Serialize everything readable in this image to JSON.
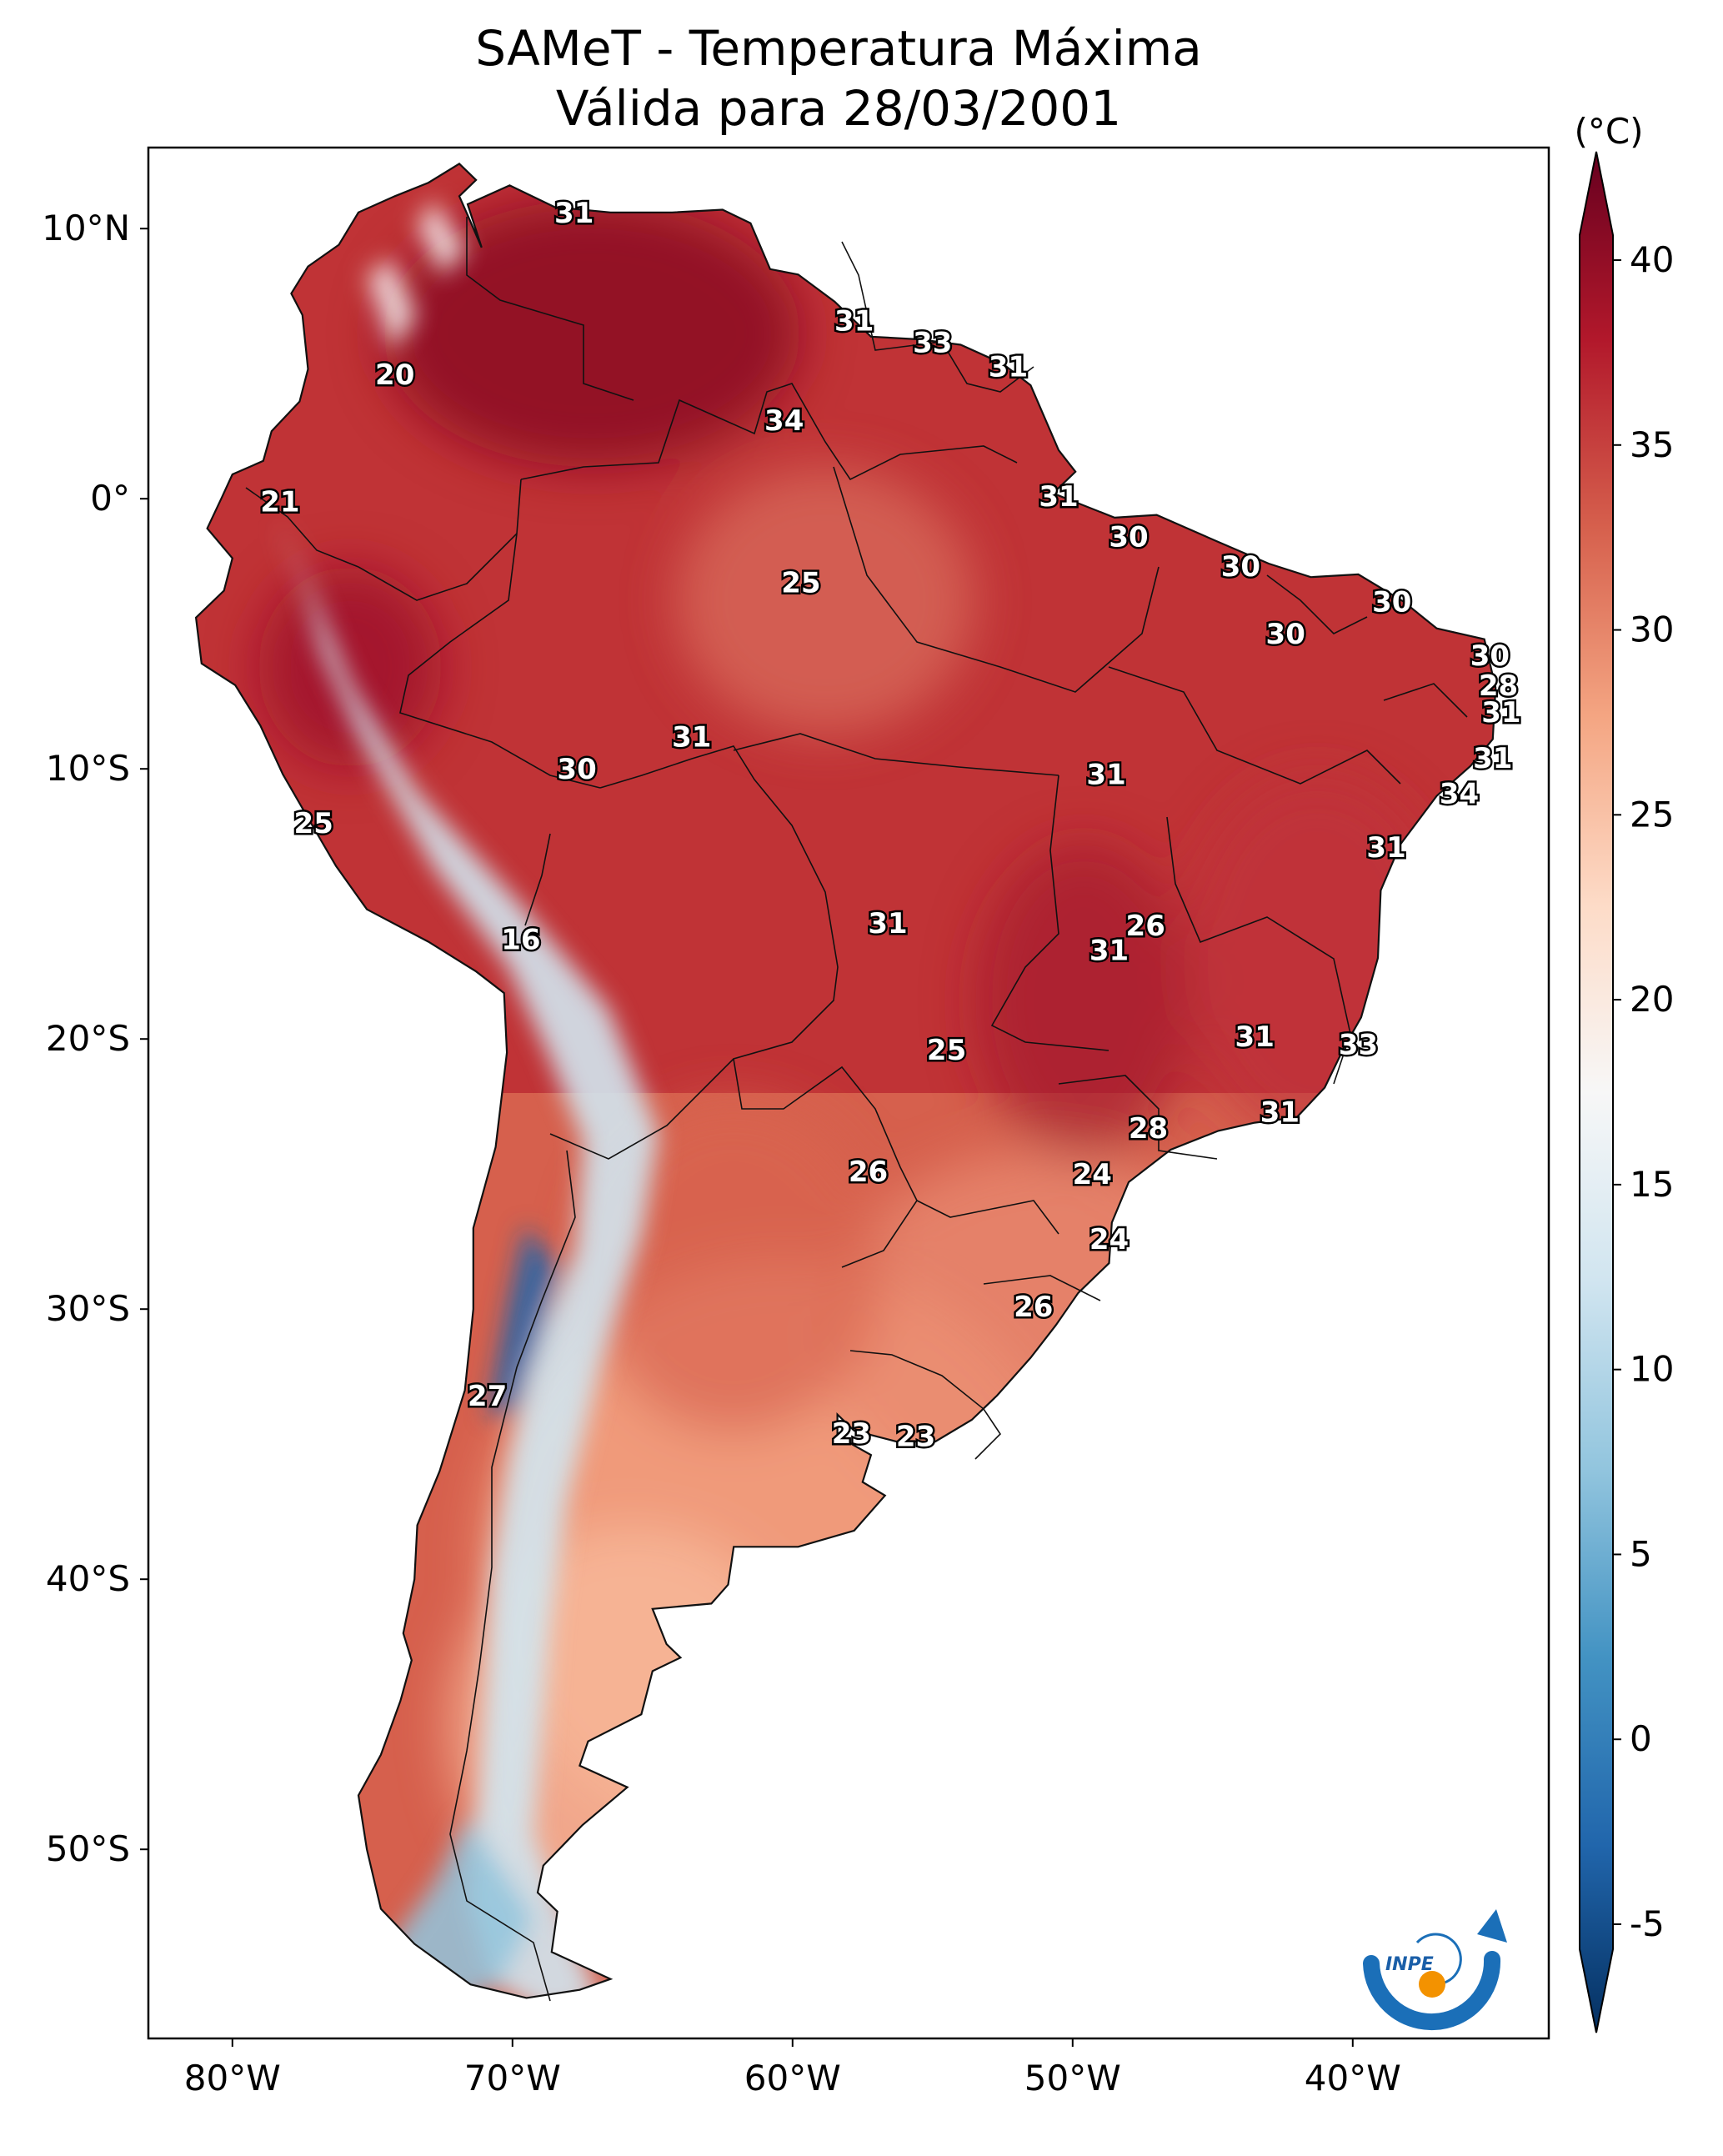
{
  "title": {
    "line1": "SAMeT - Temperatura Máxima",
    "line2": "Válida para 28/03/2001"
  },
  "map": {
    "lon_range": [
      -83,
      -33
    ],
    "lat_range": [
      -57,
      13
    ],
    "lon_ticks": [
      {
        "value": -80,
        "label": "80°W"
      },
      {
        "value": -70,
        "label": "70°W"
      },
      {
        "value": -60,
        "label": "60°W"
      },
      {
        "value": -50,
        "label": "50°W"
      },
      {
        "value": -40,
        "label": "40°W"
      }
    ],
    "lat_ticks": [
      {
        "value": 10,
        "label": "10°N"
      },
      {
        "value": 0,
        "label": "0°"
      },
      {
        "value": -10,
        "label": "10°S"
      },
      {
        "value": -20,
        "label": "20°S"
      },
      {
        "value": -30,
        "label": "30°S"
      },
      {
        "value": -40,
        "label": "40°S"
      },
      {
        "value": -50,
        "label": "50°S"
      }
    ],
    "labels": [
      {
        "lon": -67.8,
        "lat": 10.6,
        "text": "31"
      },
      {
        "lon": -74.2,
        "lat": 4.6,
        "text": "20"
      },
      {
        "lon": -60.3,
        "lat": 2.9,
        "text": "34"
      },
      {
        "lon": -57.8,
        "lat": 6.6,
        "text": "31"
      },
      {
        "lon": -55.0,
        "lat": 5.8,
        "text": "33"
      },
      {
        "lon": -52.3,
        "lat": 4.9,
        "text": "31"
      },
      {
        "lon": -78.3,
        "lat": -0.1,
        "text": "21"
      },
      {
        "lon": -50.5,
        "lat": 0.1,
        "text": "31"
      },
      {
        "lon": -48.0,
        "lat": -1.4,
        "text": "30"
      },
      {
        "lon": -59.7,
        "lat": -3.1,
        "text": "25"
      },
      {
        "lon": -44.0,
        "lat": -2.5,
        "text": "30"
      },
      {
        "lon": -42.4,
        "lat": -5.0,
        "text": "30"
      },
      {
        "lon": -38.6,
        "lat": -3.8,
        "text": "30"
      },
      {
        "lon": -35.1,
        "lat": -5.8,
        "text": "30"
      },
      {
        "lon": -34.8,
        "lat": -6.9,
        "text": "28"
      },
      {
        "lon": -34.7,
        "lat": -7.9,
        "text": "31"
      },
      {
        "lon": -63.6,
        "lat": -8.8,
        "text": "31"
      },
      {
        "lon": -67.7,
        "lat": -10.0,
        "text": "30"
      },
      {
        "lon": -48.8,
        "lat": -10.2,
        "text": "31"
      },
      {
        "lon": -35.0,
        "lat": -9.6,
        "text": "31"
      },
      {
        "lon": -36.2,
        "lat": -10.9,
        "text": "34"
      },
      {
        "lon": -77.1,
        "lat": -12.0,
        "text": "25"
      },
      {
        "lon": -38.8,
        "lat": -12.9,
        "text": "31"
      },
      {
        "lon": -69.7,
        "lat": -16.3,
        "text": "16"
      },
      {
        "lon": -56.6,
        "lat": -15.7,
        "text": "31"
      },
      {
        "lon": -47.4,
        "lat": -15.8,
        "text": "26"
      },
      {
        "lon": -48.7,
        "lat": -16.7,
        "text": "31"
      },
      {
        "lon": -43.5,
        "lat": -19.9,
        "text": "31"
      },
      {
        "lon": -39.8,
        "lat": -20.2,
        "text": "33"
      },
      {
        "lon": -54.5,
        "lat": -20.4,
        "text": "25"
      },
      {
        "lon": -42.6,
        "lat": -22.7,
        "text": "31"
      },
      {
        "lon": -47.3,
        "lat": -23.3,
        "text": "28"
      },
      {
        "lon": -57.3,
        "lat": -24.9,
        "text": "26"
      },
      {
        "lon": -49.3,
        "lat": -25.0,
        "text": "24"
      },
      {
        "lon": -48.7,
        "lat": -27.4,
        "text": "24"
      },
      {
        "lon": -51.4,
        "lat": -29.9,
        "text": "26"
      },
      {
        "lon": -70.9,
        "lat": -33.2,
        "text": "27"
      },
      {
        "lon": -57.9,
        "lat": -34.6,
        "text": "23"
      },
      {
        "lon": -55.6,
        "lat": -34.7,
        "text": "23"
      }
    ]
  },
  "colorbar": {
    "unit_label": "(°C)",
    "min": -7,
    "max": 42,
    "ticks": [
      {
        "value": 40,
        "label": "40"
      },
      {
        "value": 35,
        "label": "35"
      },
      {
        "value": 30,
        "label": "30"
      },
      {
        "value": 25,
        "label": "25"
      },
      {
        "value": 20,
        "label": "20"
      },
      {
        "value": 15,
        "label": "15"
      },
      {
        "value": 10,
        "label": "10"
      },
      {
        "value": 5,
        "label": "5"
      },
      {
        "value": 0,
        "label": "0"
      },
      {
        "value": -5,
        "label": "-5"
      }
    ],
    "colors": [
      "#053061",
      "#2166ac",
      "#4393c3",
      "#92c5de",
      "#d1e5f0",
      "#f7f7f7",
      "#fddbc7",
      "#f4a582",
      "#d6604d",
      "#b2182b",
      "#67001f"
    ]
  },
  "logo": {
    "text": "INPE",
    "blue": "#1b6fb8",
    "orange": "#f39200"
  },
  "colors": {
    "ocean": "#ffffff",
    "hot": "#b8242f",
    "warm": "#d6604d",
    "mild": "#f4a582",
    "cool": "#f7f7f7",
    "cold": "#4393c3",
    "border": "#111111"
  }
}
